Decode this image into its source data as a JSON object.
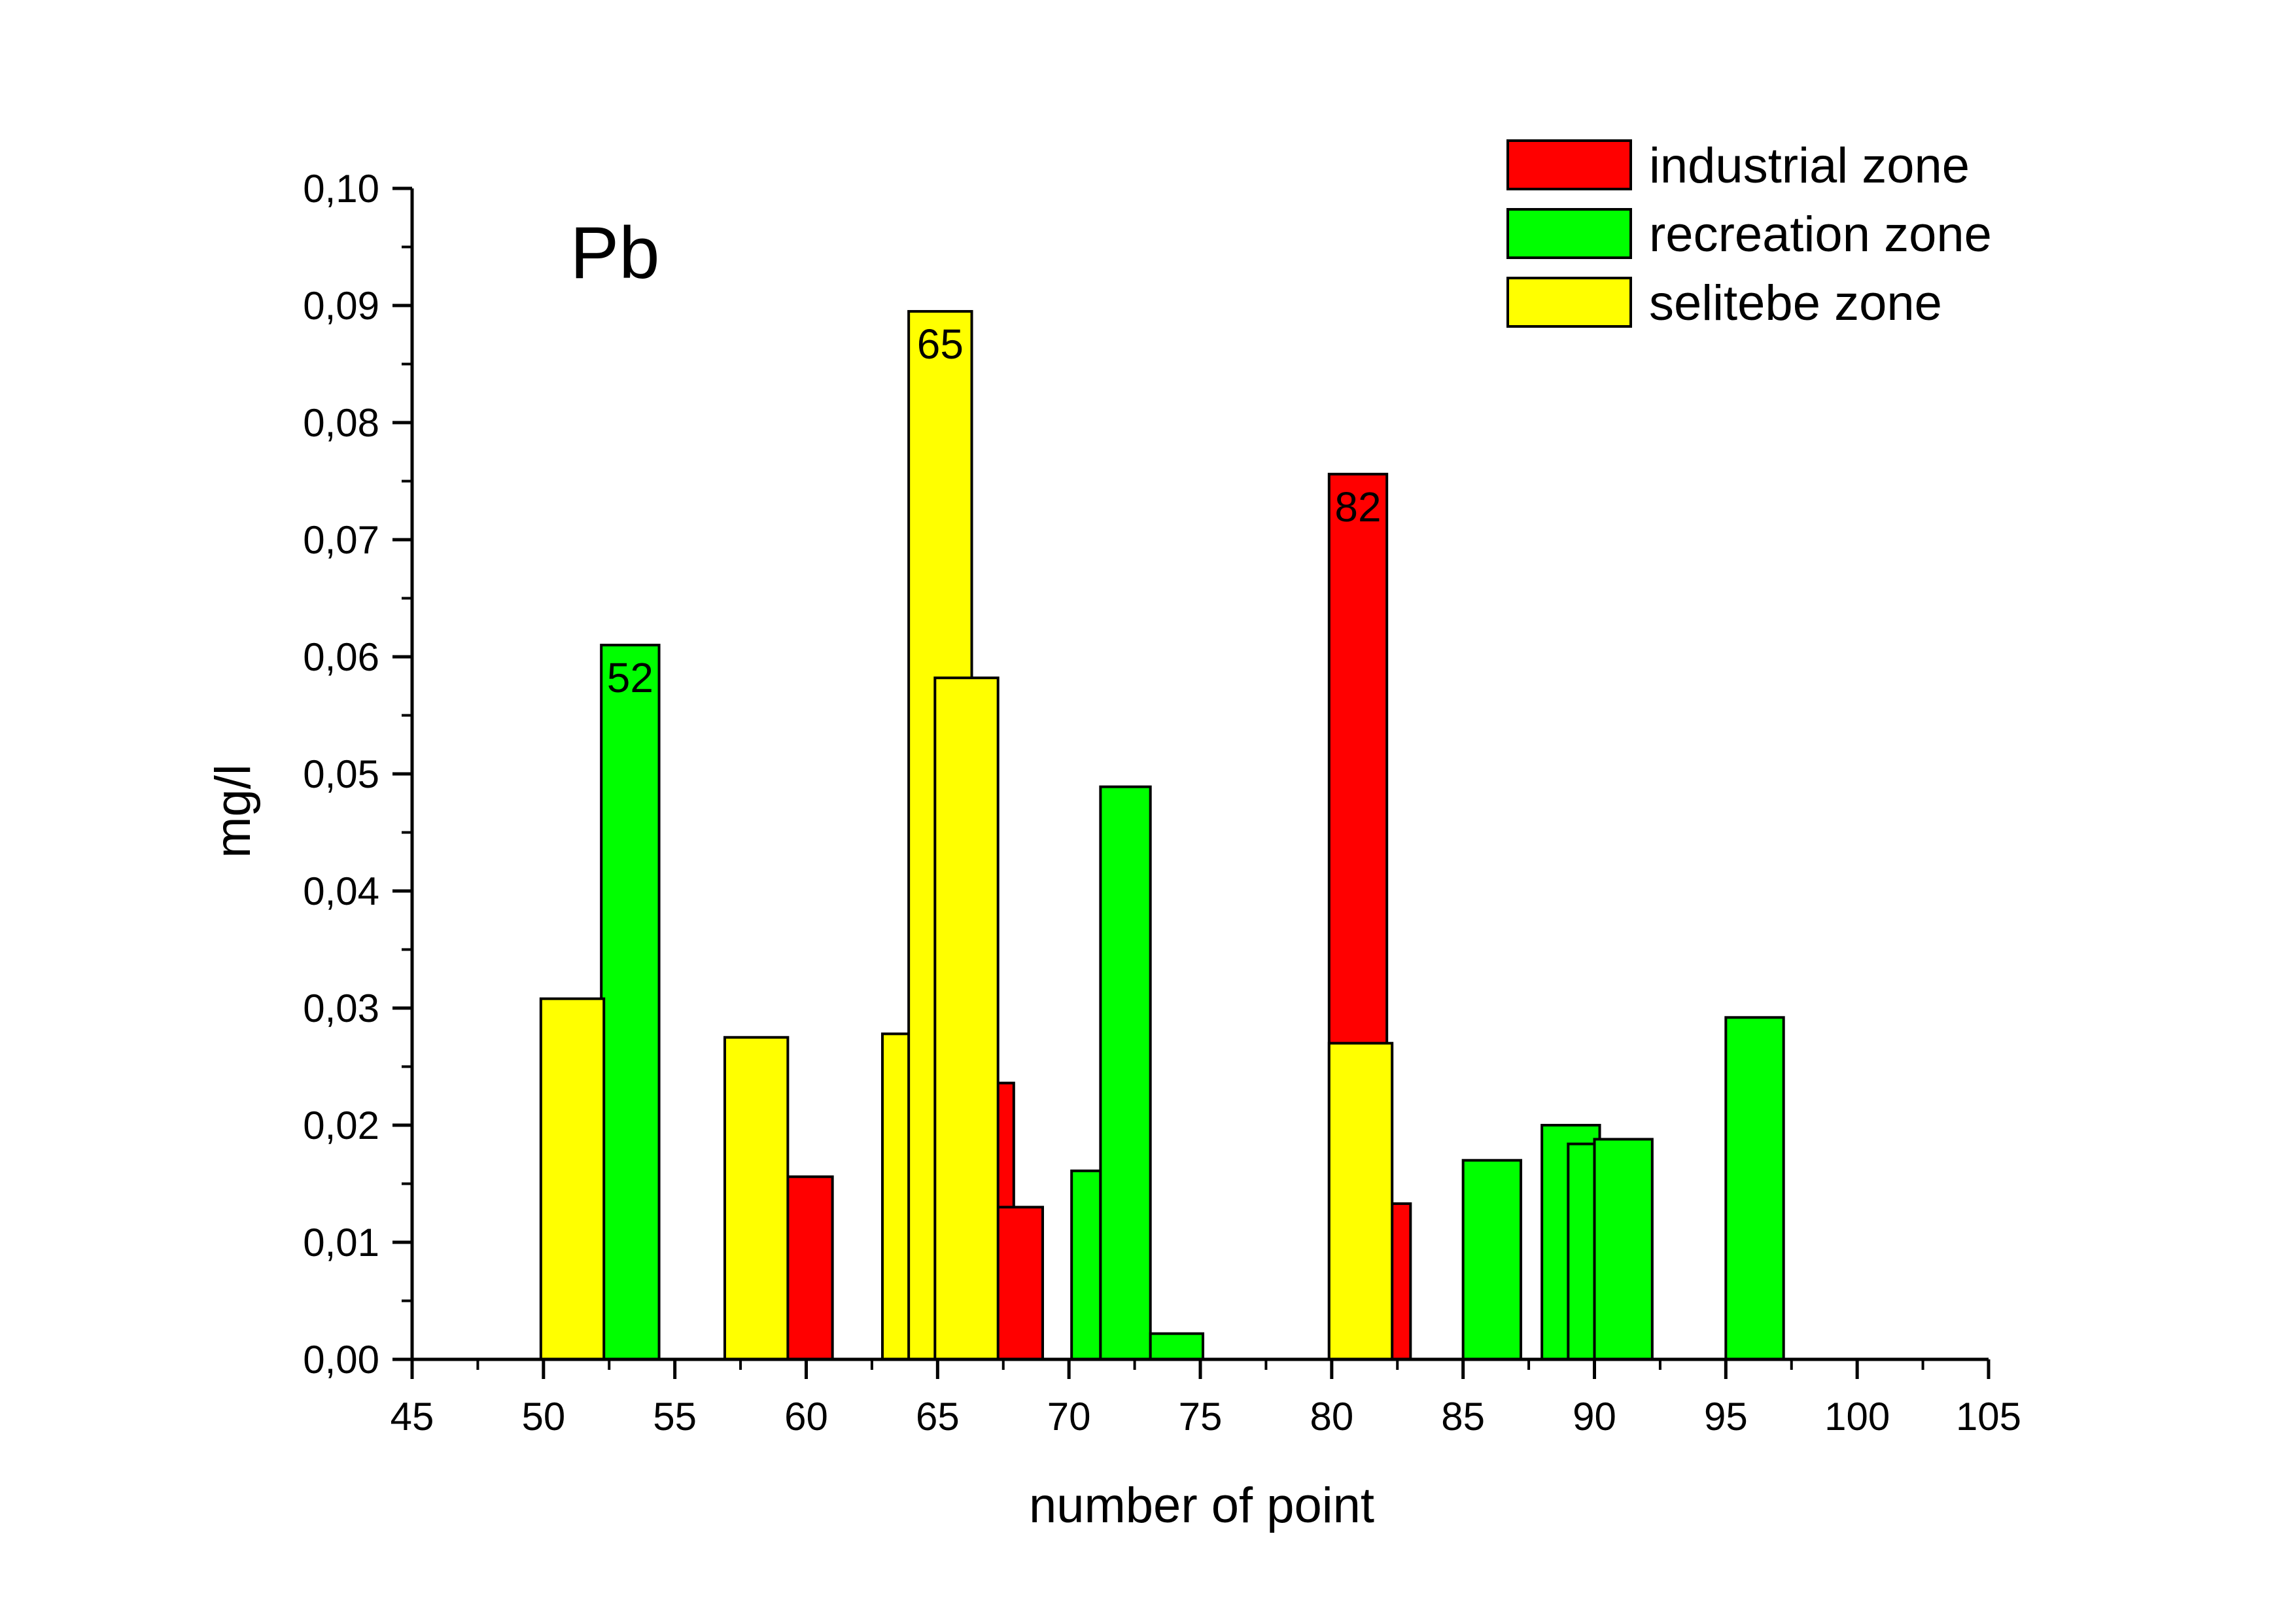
{
  "chart_data": {
    "type": "bar",
    "title": "Pb",
    "xlabel": "number of point",
    "ylabel": "mg/l",
    "xlim": [
      45,
      105
    ],
    "ylim": [
      0,
      0.1
    ],
    "x_ticks": [
      "45",
      "50",
      "55",
      "60",
      "65",
      "70",
      "75",
      "80",
      "85",
      "90",
      "95",
      "100",
      "105"
    ],
    "y_ticks": [
      "0,00",
      "0,01",
      "0,02",
      "0,03",
      "0,04",
      "0,05",
      "0,06",
      "0,07",
      "0,08",
      "0,09",
      "0,10"
    ],
    "grid": false,
    "legend_position": "top-right",
    "series": [
      {
        "name": "industrial zone",
        "color": "#ff0000",
        "bars": [
          {
            "x0": 59.2,
            "x1": 61.0,
            "value": 0.0156
          },
          {
            "x0": 67.2,
            "x1": 67.9,
            "value": 0.0236
          },
          {
            "x0": 67.2,
            "x1": 69.0,
            "value": 0.013
          },
          {
            "x0": 79.9,
            "x1": 82.1,
            "value": 0.0756,
            "label": "82"
          },
          {
            "x0": 82.1,
            "x1": 83.0,
            "value": 0.0133
          }
        ]
      },
      {
        "name": "recreation zone",
        "color": "#00ff00",
        "bars": [
          {
            "x0": 52.2,
            "x1": 54.4,
            "value": 0.061,
            "label": "52"
          },
          {
            "x0": 70.1,
            "x1": 71.2,
            "value": 0.0161
          },
          {
            "x0": 71.2,
            "x1": 73.1,
            "value": 0.0489
          },
          {
            "x0": 73.1,
            "x1": 75.1,
            "value": 0.0022
          },
          {
            "x0": 85.0,
            "x1": 87.2,
            "value": 0.017
          },
          {
            "x0": 88.0,
            "x1": 90.2,
            "value": 0.02
          },
          {
            "x0": 89.0,
            "x1": 90.2,
            "value": 0.0184
          },
          {
            "x0": 90.0,
            "x1": 92.2,
            "value": 0.0188
          },
          {
            "x0": 95.0,
            "x1": 97.2,
            "value": 0.0292
          }
        ]
      },
      {
        "name": "selitebe zone",
        "color": "#ffff00",
        "bars": [
          {
            "x0": 49.9,
            "x1": 52.3,
            "value": 0.0308
          },
          {
            "x0": 56.9,
            "x1": 59.3,
            "value": 0.0275
          },
          {
            "x0": 62.9,
            "x1": 64.0,
            "value": 0.0278
          },
          {
            "x0": 63.9,
            "x1": 66.3,
            "value": 0.0895,
            "label": "65"
          },
          {
            "x0": 64.9,
            "x1": 67.3,
            "value": 0.0582
          },
          {
            "x0": 79.9,
            "x1": 82.3,
            "value": 0.027
          }
        ]
      }
    ]
  }
}
